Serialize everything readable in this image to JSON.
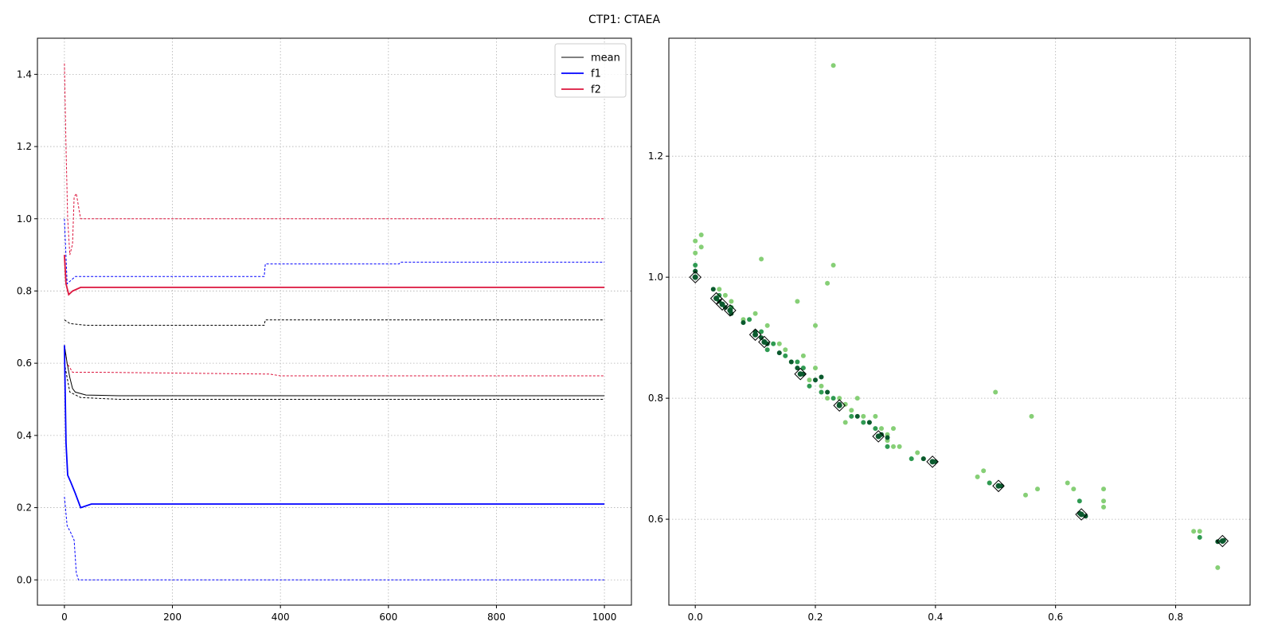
{
  "figure_title": "CTP1: CTAEA",
  "colors": {
    "mean": "#000000",
    "f1": "#0000ff",
    "f2": "#dc143c",
    "scatter_light": "#86cf76",
    "scatter_mid": "#2f9a52",
    "scatter_dark": "#0b5a2e",
    "grid": "#b0b0b0"
  },
  "chart_data": [
    {
      "type": "line",
      "title": "",
      "xlabel": "",
      "ylabel": "",
      "xlim": [
        -50,
        1050
      ],
      "ylim": [
        -0.07,
        1.5
      ],
      "xticks": [
        0,
        200,
        400,
        600,
        800,
        1000
      ],
      "yticks": [
        0.0,
        0.2,
        0.4,
        0.6,
        0.8,
        1.0,
        1.2,
        1.4
      ],
      "grid": true,
      "legend_position": "top-right",
      "series": [
        {
          "name": "mean",
          "color": "#000000",
          "role": "mean",
          "values": [
            [
              0,
              0.65
            ],
            [
              5,
              0.6
            ],
            [
              10,
              0.56
            ],
            [
              15,
              0.53
            ],
            [
              20,
              0.52
            ],
            [
              40,
              0.512
            ],
            [
              100,
              0.51
            ],
            [
              400,
              0.51
            ],
            [
              1000,
              0.51
            ]
          ]
        },
        {
          "name": "f1",
          "color": "#0000ff",
          "role": "mean",
          "values": [
            [
              0,
              0.65
            ],
            [
              3,
              0.38
            ],
            [
              6,
              0.29
            ],
            [
              12,
              0.27
            ],
            [
              20,
              0.24
            ],
            [
              30,
              0.2
            ],
            [
              50,
              0.21
            ],
            [
              100,
              0.21
            ],
            [
              1000,
              0.21
            ]
          ]
        },
        {
          "name": "f2",
          "color": "#dc143c",
          "role": "mean",
          "values": [
            [
              0,
              0.9
            ],
            [
              3,
              0.82
            ],
            [
              8,
              0.79
            ],
            [
              15,
              0.8
            ],
            [
              30,
              0.81
            ],
            [
              60,
              0.81
            ],
            [
              1000,
              0.81
            ]
          ]
        }
      ],
      "bounds": [
        {
          "color": "#000000",
          "values": [
            [
              0,
              0.72
            ],
            [
              10,
              0.71
            ],
            [
              40,
              0.705
            ],
            [
              370,
              0.705
            ],
            [
              372,
              0.72
            ],
            [
              1000,
              0.72
            ]
          ]
        },
        {
          "color": "#000000",
          "values": [
            [
              0,
              0.6
            ],
            [
              10,
              0.52
            ],
            [
              30,
              0.505
            ],
            [
              100,
              0.5
            ],
            [
              1000,
              0.5
            ]
          ]
        },
        {
          "color": "#0000ff",
          "values": [
            [
              0,
              1.0
            ],
            [
              5,
              0.82
            ],
            [
              20,
              0.84
            ],
            [
              70,
              0.84
            ],
            [
              370,
              0.84
            ],
            [
              372,
              0.875
            ],
            [
              620,
              0.875
            ],
            [
              622,
              0.88
            ],
            [
              1000,
              0.88
            ]
          ]
        },
        {
          "color": "#0000ff",
          "values": [
            [
              0,
              0.23
            ],
            [
              5,
              0.15
            ],
            [
              12,
              0.13
            ],
            [
              18,
              0.11
            ],
            [
              22,
              0.02
            ],
            [
              26,
              0.0
            ],
            [
              1000,
              0.0
            ]
          ]
        },
        {
          "color": "#dc143c",
          "values": [
            [
              0,
              1.43
            ],
            [
              3,
              1.2
            ],
            [
              6,
              1.0
            ],
            [
              10,
              0.9
            ],
            [
              15,
              0.93
            ],
            [
              18,
              1.06
            ],
            [
              22,
              1.07
            ],
            [
              30,
              1.0
            ],
            [
              1000,
              1.0
            ]
          ]
        },
        {
          "color": "#dc143c",
          "values": [
            [
              0,
              0.65
            ],
            [
              5,
              0.6
            ],
            [
              15,
              0.575
            ],
            [
              60,
              0.575
            ],
            [
              380,
              0.57
            ],
            [
              400,
              0.565
            ],
            [
              1000,
              0.565
            ]
          ]
        }
      ]
    },
    {
      "type": "scatter",
      "title": "",
      "xlabel": "",
      "ylabel": "",
      "xlim": [
        -0.044,
        0.924
      ],
      "ylim": [
        0.458,
        1.395
      ],
      "xticks": [
        0.0,
        0.2,
        0.4,
        0.6,
        0.8
      ],
      "yticks": [
        0.6,
        0.8,
        1.0,
        1.2
      ],
      "grid": true,
      "points_light": [
        [
          0.23,
          1.35
        ],
        [
          0.01,
          1.07
        ],
        [
          0.01,
          1.05
        ],
        [
          0.0,
          1.06
        ],
        [
          0.0,
          1.04
        ],
        [
          0.11,
          1.03
        ],
        [
          0.23,
          1.02
        ],
        [
          0.22,
          0.99
        ],
        [
          0.17,
          0.96
        ],
        [
          0.2,
          0.92
        ],
        [
          0.5,
          0.81
        ],
        [
          0.56,
          0.77
        ],
        [
          0.04,
          0.98
        ],
        [
          0.05,
          0.97
        ],
        [
          0.06,
          0.96
        ],
        [
          0.08,
          0.93
        ],
        [
          0.1,
          0.94
        ],
        [
          0.12,
          0.92
        ],
        [
          0.14,
          0.89
        ],
        [
          0.15,
          0.88
        ],
        [
          0.16,
          0.86
        ],
        [
          0.18,
          0.87
        ],
        [
          0.19,
          0.83
        ],
        [
          0.2,
          0.85
        ],
        [
          0.21,
          0.82
        ],
        [
          0.22,
          0.8
        ],
        [
          0.24,
          0.8
        ],
        [
          0.25,
          0.79
        ],
        [
          0.26,
          0.78
        ],
        [
          0.27,
          0.8
        ],
        [
          0.28,
          0.77
        ],
        [
          0.29,
          0.76
        ],
        [
          0.3,
          0.77
        ],
        [
          0.31,
          0.75
        ],
        [
          0.32,
          0.74
        ],
        [
          0.33,
          0.75
        ],
        [
          0.34,
          0.72
        ],
        [
          0.37,
          0.71
        ],
        [
          0.38,
          0.7
        ],
        [
          0.47,
          0.67
        ],
        [
          0.48,
          0.68
        ],
        [
          0.49,
          0.66
        ],
        [
          0.55,
          0.64
        ],
        [
          0.57,
          0.65
        ],
        [
          0.62,
          0.66
        ],
        [
          0.63,
          0.65
        ],
        [
          0.68,
          0.65
        ],
        [
          0.68,
          0.63
        ],
        [
          0.68,
          0.62
        ],
        [
          0.83,
          0.58
        ],
        [
          0.84,
          0.58
        ],
        [
          0.87,
          0.52
        ],
        [
          0.32,
          0.73
        ],
        [
          0.33,
          0.72
        ],
        [
          0.25,
          0.76
        ]
      ],
      "points_mid": [
        [
          0.0,
          1.01
        ],
        [
          0.0,
          1.02
        ],
        [
          0.04,
          0.97
        ],
        [
          0.06,
          0.95
        ],
        [
          0.09,
          0.93
        ],
        [
          0.11,
          0.91
        ],
        [
          0.13,
          0.89
        ],
        [
          0.15,
          0.87
        ],
        [
          0.17,
          0.86
        ],
        [
          0.19,
          0.82
        ],
        [
          0.21,
          0.81
        ],
        [
          0.23,
          0.8
        ],
        [
          0.26,
          0.77
        ],
        [
          0.28,
          0.76
        ],
        [
          0.3,
          0.75
        ],
        [
          0.32,
          0.72
        ],
        [
          0.36,
          0.7
        ],
        [
          0.49,
          0.66
        ],
        [
          0.64,
          0.63
        ],
        [
          0.84,
          0.57
        ],
        [
          0.18,
          0.85
        ],
        [
          0.12,
          0.88
        ]
      ],
      "points_dark": [
        [
          0.0,
          1.0
        ],
        [
          0.0,
          1.01
        ],
        [
          0.03,
          0.98
        ],
        [
          0.04,
          0.96
        ],
        [
          0.05,
          0.95
        ],
        [
          0.06,
          0.94
        ],
        [
          0.1,
          0.91
        ],
        [
          0.11,
          0.9
        ],
        [
          0.12,
          0.89
        ],
        [
          0.16,
          0.86
        ],
        [
          0.17,
          0.85
        ],
        [
          0.18,
          0.84
        ],
        [
          0.2,
          0.83
        ],
        [
          0.22,
          0.81
        ],
        [
          0.24,
          0.79
        ],
        [
          0.27,
          0.77
        ],
        [
          0.29,
          0.76
        ],
        [
          0.31,
          0.74
        ],
        [
          0.32,
          0.735
        ],
        [
          0.38,
          0.7
        ],
        [
          0.4,
          0.695
        ],
        [
          0.51,
          0.655
        ],
        [
          0.64,
          0.61
        ],
        [
          0.65,
          0.605
        ],
        [
          0.88,
          0.565
        ],
        [
          0.87,
          0.563
        ],
        [
          0.21,
          0.835
        ],
        [
          0.14,
          0.875
        ],
        [
          0.08,
          0.925
        ]
      ],
      "pareto_front": [
        [
          0.0,
          1.0
        ],
        [
          0.035,
          0.965
        ],
        [
          0.045,
          0.955
        ],
        [
          0.058,
          0.945
        ],
        [
          0.1,
          0.905
        ],
        [
          0.115,
          0.893
        ],
        [
          0.175,
          0.84
        ],
        [
          0.24,
          0.788
        ],
        [
          0.305,
          0.737
        ],
        [
          0.395,
          0.695
        ],
        [
          0.505,
          0.655
        ],
        [
          0.643,
          0.608
        ],
        [
          0.878,
          0.564
        ]
      ]
    }
  ]
}
